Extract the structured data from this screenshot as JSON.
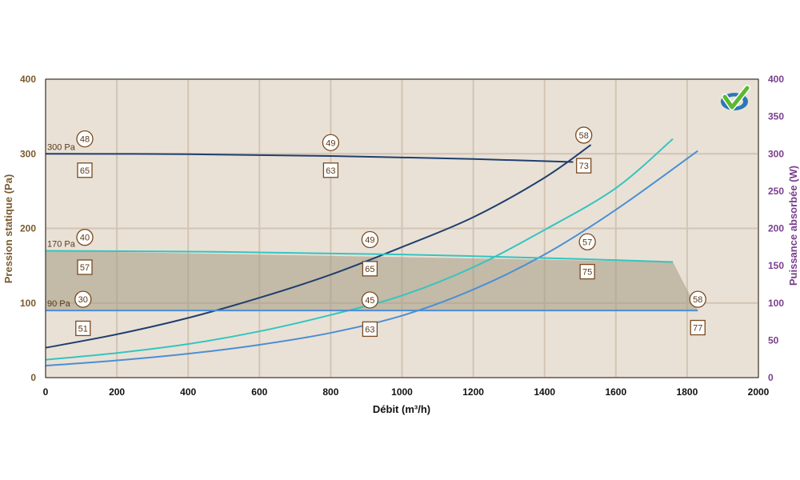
{
  "chart_data": {
    "type": "line",
    "x_axis": {
      "label": "Débit (m³/h)",
      "range": [
        0,
        2000
      ],
      "ticks": [
        0,
        200,
        400,
        600,
        800,
        1000,
        1200,
        1400,
        1600,
        1800,
        2000
      ]
    },
    "y_left": {
      "label": "Pression statique (Pa)",
      "range": [
        0,
        400
      ],
      "ticks": [
        0,
        100,
        200,
        300,
        400
      ],
      "color": "#7a5a2e"
    },
    "y_right": {
      "label": "Puissance absorbée (W)",
      "range": [
        0,
        400
      ],
      "ticks": [
        0,
        50,
        100,
        150,
        200,
        250,
        300,
        350,
        400
      ],
      "color": "#7a3e8e"
    },
    "grid": true,
    "plot_background": "#e9e1d6",
    "grid_color": "#d3c4b3",
    "operating_zone": {
      "color": "#a49a84",
      "polygon": [
        [
          0,
          170
        ],
        [
          1760,
          155
        ],
        [
          1830,
          90
        ],
        [
          0,
          90
        ]
      ]
    },
    "pressure_curves": [
      {
        "label": "300 Pa",
        "color": "#1f3f6e",
        "points": [
          [
            0,
            300
          ],
          [
            400,
            299.5
          ],
          [
            800,
            297
          ],
          [
            1200,
            293
          ],
          [
            1480,
            289
          ]
        ]
      },
      {
        "label": "170 Pa",
        "color": "#35c4c0",
        "points": [
          [
            0,
            170
          ],
          [
            500,
            168.5
          ],
          [
            1000,
            165
          ],
          [
            1500,
            159
          ],
          [
            1760,
            155
          ]
        ]
      },
      {
        "label": "90 Pa",
        "color": "#4a8fd4",
        "points": [
          [
            0,
            90
          ],
          [
            600,
            90
          ],
          [
            1200,
            90
          ],
          [
            1830,
            90
          ]
        ]
      }
    ],
    "power_curves": [
      {
        "color": "#1f3f6e",
        "axis": "right",
        "points": [
          [
            0,
            40
          ],
          [
            200,
            58
          ],
          [
            400,
            80
          ],
          [
            600,
            107
          ],
          [
            800,
            138
          ],
          [
            1000,
            175
          ],
          [
            1200,
            215
          ],
          [
            1400,
            268
          ],
          [
            1530,
            312
          ]
        ]
      },
      {
        "color": "#35c4c0",
        "axis": "right",
        "points": [
          [
            0,
            24
          ],
          [
            200,
            33
          ],
          [
            400,
            45
          ],
          [
            600,
            62
          ],
          [
            800,
            84
          ],
          [
            1000,
            110
          ],
          [
            1200,
            148
          ],
          [
            1400,
            198
          ],
          [
            1600,
            254
          ],
          [
            1760,
            320
          ]
        ]
      },
      {
        "color": "#4a8fd4",
        "axis": "right",
        "points": [
          [
            0,
            16
          ],
          [
            200,
            23
          ],
          [
            400,
            32
          ],
          [
            600,
            44
          ],
          [
            800,
            60
          ],
          [
            1000,
            83
          ],
          [
            1200,
            118
          ],
          [
            1400,
            165
          ],
          [
            1600,
            225
          ],
          [
            1830,
            304
          ]
        ]
      }
    ],
    "sound_markers": [
      {
        "shape": "circle",
        "x": 110,
        "y": 320,
        "text": "48"
      },
      {
        "shape": "square",
        "x": 110,
        "y": 278,
        "text": "65"
      },
      {
        "shape": "circle",
        "x": 800,
        "y": 315,
        "text": "49"
      },
      {
        "shape": "square",
        "x": 800,
        "y": 278,
        "text": "63"
      },
      {
        "shape": "circle",
        "x": 1510,
        "y": 325,
        "text": "58"
      },
      {
        "shape": "square",
        "x": 1510,
        "y": 284,
        "text": "73"
      },
      {
        "shape": "circle",
        "x": 110,
        "y": 188,
        "text": "40"
      },
      {
        "shape": "square",
        "x": 110,
        "y": 148,
        "text": "57"
      },
      {
        "shape": "circle",
        "x": 910,
        "y": 185,
        "text": "49"
      },
      {
        "shape": "square",
        "x": 910,
        "y": 146,
        "text": "65"
      },
      {
        "shape": "circle",
        "x": 1520,
        "y": 182,
        "text": "57"
      },
      {
        "shape": "square",
        "x": 1520,
        "y": 142,
        "text": "75"
      },
      {
        "shape": "circle",
        "x": 105,
        "y": 105,
        "text": "30"
      },
      {
        "shape": "square",
        "x": 105,
        "y": 66,
        "text": "51"
      },
      {
        "shape": "circle",
        "x": 910,
        "y": 104,
        "text": "45"
      },
      {
        "shape": "square",
        "x": 910,
        "y": 65,
        "text": "63"
      },
      {
        "shape": "circle",
        "x": 1830,
        "y": 105,
        "text": "58"
      },
      {
        "shape": "square",
        "x": 1830,
        "y": 67,
        "text": "77"
      }
    ]
  },
  "logo": {
    "name": "check-logo-icon",
    "colors": [
      "#5cb82e",
      "#2a78b8"
    ]
  }
}
